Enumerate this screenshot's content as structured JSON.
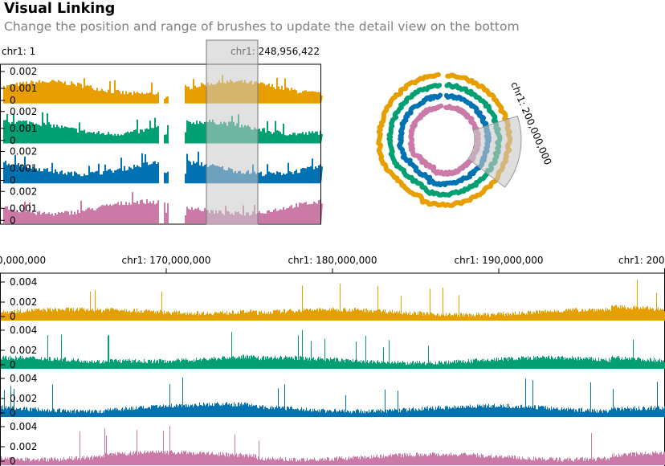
{
  "header": {
    "title": "Visual Linking",
    "subtitle": "Change the position and range of brushes to update the detail view on the bottom"
  },
  "colors": {
    "orange": "#E79F00",
    "green": "#029F73",
    "blue": "#0072B2",
    "pink": "#CB7AA7",
    "brush_fill": "#C8C8C8",
    "axis": "#000000"
  },
  "overview": {
    "start_label": "chr1: 1",
    "end_label": "chr1: 248,956,422",
    "y_ticks": [
      "0.002",
      "0.001",
      "0"
    ],
    "tracks": [
      "orange",
      "green",
      "blue",
      "pink"
    ]
  },
  "circular": {
    "brush_label": "chr1: 200,000,000",
    "tracks": [
      "orange",
      "green",
      "blue",
      "pink"
    ]
  },
  "detail": {
    "x_ticks": [
      "0,000,000",
      "chr1: 170,000,000",
      "chr1: 180,000,000",
      "chr1: 190,000,000",
      "chr1: 200"
    ],
    "y_ticks": [
      "0.004",
      "0.002",
      "0"
    ],
    "tracks": [
      "orange",
      "green",
      "blue",
      "pink"
    ]
  }
}
